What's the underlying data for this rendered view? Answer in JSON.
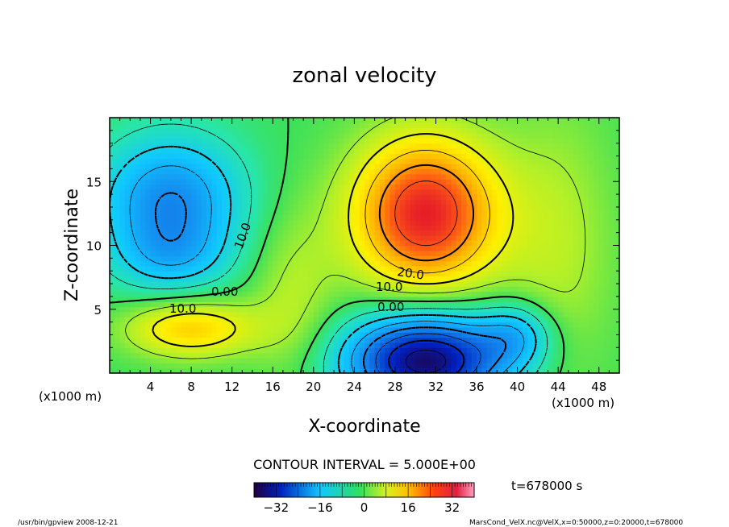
{
  "chart_data": {
    "type": "heatmap",
    "title": "zonal velocity",
    "xlabel": "X-coordinate",
    "ylabel": "Z-coordinate",
    "x_unit_left": "(x1000 m)",
    "x_unit_right": "(x1000 m)",
    "xlim": [
      0,
      50
    ],
    "ylim": [
      0,
      20
    ],
    "x_ticks": [
      "4",
      "8",
      "12",
      "16",
      "20",
      "24",
      "28",
      "32",
      "36",
      "40",
      "44",
      "48"
    ],
    "y_ticks": [
      "5",
      "10",
      "15"
    ],
    "contour_labels": [
      "10.0",
      "0.00",
      "10.0",
      "20.0",
      "10.0",
      "0.00"
    ],
    "contour_interval_text": "CONTOUR INTERVAL = 5.000E+00",
    "colorbar": {
      "range": [
        -40,
        40
      ],
      "ticks": [
        "−32",
        "−16",
        "0",
        "16",
        "32"
      ]
    },
    "time_label": "t=678000 s",
    "footer_left": "/usr/bin/gpview  2008-12-21",
    "footer_right": "MarsCond_VelX.nc@VelX,x=0:50000,z=0:20000,t=678000",
    "features": [
      {
        "kind": "max",
        "x": 31,
        "z": 12.5,
        "value": 28
      },
      {
        "kind": "min",
        "x": 31,
        "z": 1,
        "value": -36
      },
      {
        "kind": "min",
        "x": 6,
        "z": 13.5,
        "value": -18
      },
      {
        "kind": "max",
        "x": 8,
        "z": 3.5,
        "value": 14
      }
    ]
  }
}
